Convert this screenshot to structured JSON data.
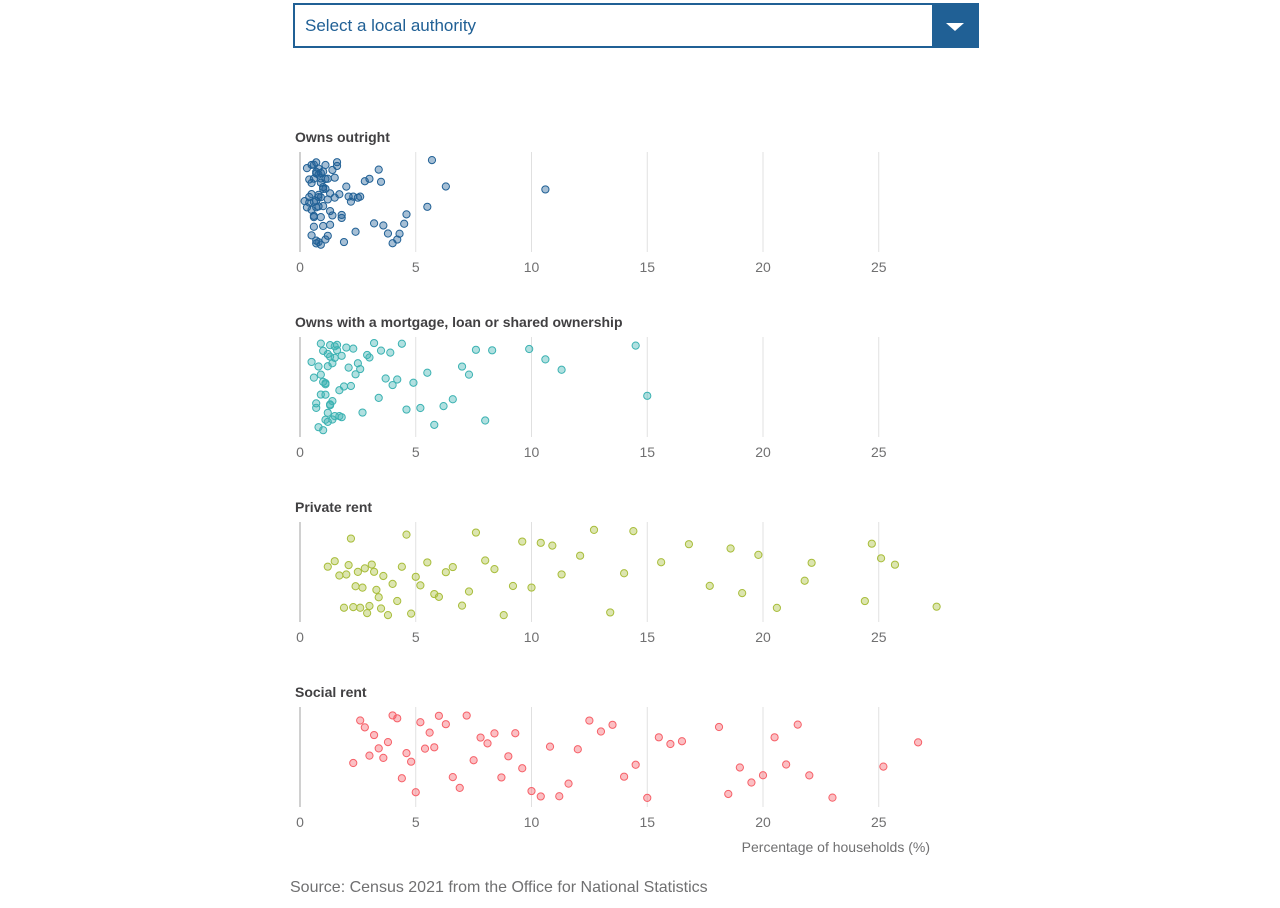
{
  "dropdown": {
    "placeholder": "Select a local authority"
  },
  "source": "Source: Census 2021 from the Office for National Statistics",
  "chart_data": {
    "type": "scatter",
    "xlabel": "Percentage of households (%)",
    "xlim": [
      0,
      28
    ],
    "xticks": [
      0,
      5,
      10,
      15,
      20,
      25
    ],
    "jitter": "vertical (beeswarm-style strip)",
    "panels": [
      {
        "title": "Owns outright",
        "color": "#206095",
        "values": [
          0.2,
          0.3,
          0.3,
          0.4,
          0.4,
          0.4,
          0.5,
          0.5,
          0.5,
          0.5,
          0.5,
          0.6,
          0.6,
          0.6,
          0.6,
          0.6,
          0.6,
          0.7,
          0.7,
          0.7,
          0.7,
          0.7,
          0.7,
          0.7,
          0.8,
          0.8,
          0.8,
          0.8,
          0.8,
          0.8,
          0.9,
          0.9,
          0.9,
          0.9,
          0.9,
          0.9,
          1.0,
          1.0,
          1.0,
          1.0,
          1.0,
          1.1,
          1.1,
          1.1,
          1.1,
          1.2,
          1.2,
          1.2,
          1.3,
          1.3,
          1.3,
          1.4,
          1.4,
          1.5,
          1.5,
          1.6,
          1.6,
          1.7,
          1.8,
          1.8,
          1.9,
          2.0,
          2.1,
          2.2,
          2.3,
          2.4,
          2.5,
          2.6,
          2.8,
          3.0,
          3.2,
          3.4,
          3.5,
          3.6,
          3.8,
          4.0,
          4.2,
          4.3,
          4.5,
          4.6,
          5.5,
          5.7,
          6.3,
          10.6
        ]
      },
      {
        "title": "Owns with a mortgage, loan or shared ownership",
        "color": "#3BB2B2",
        "values": [
          0.5,
          0.6,
          0.7,
          0.7,
          0.8,
          0.8,
          0.9,
          0.9,
          0.9,
          1.0,
          1.0,
          1.0,
          1.1,
          1.1,
          1.1,
          1.1,
          1.2,
          1.2,
          1.2,
          1.2,
          1.3,
          1.3,
          1.3,
          1.3,
          1.4,
          1.4,
          1.4,
          1.5,
          1.5,
          1.5,
          1.6,
          1.6,
          1.7,
          1.7,
          1.8,
          1.8,
          1.9,
          2.0,
          2.1,
          2.2,
          2.3,
          2.4,
          2.5,
          2.6,
          2.7,
          2.9,
          3.0,
          3.2,
          3.4,
          3.5,
          3.7,
          3.9,
          4.0,
          4.2,
          4.4,
          4.6,
          4.9,
          5.2,
          5.5,
          5.8,
          6.2,
          6.6,
          7.0,
          7.3,
          7.6,
          8.0,
          8.3,
          9.9,
          10.6,
          11.3,
          14.5,
          15.0
        ]
      },
      {
        "title": "Private rent",
        "color": "#A8BD3A",
        "values": [
          1.2,
          1.5,
          1.7,
          1.9,
          2.0,
          2.1,
          2.2,
          2.3,
          2.4,
          2.5,
          2.6,
          2.7,
          2.8,
          2.9,
          3.0,
          3.1,
          3.2,
          3.3,
          3.4,
          3.5,
          3.6,
          3.8,
          4.0,
          4.2,
          4.4,
          4.6,
          4.8,
          5.0,
          5.2,
          5.5,
          5.8,
          6.0,
          6.3,
          6.6,
          7.0,
          7.3,
          7.6,
          8.0,
          8.4,
          8.8,
          9.2,
          9.6,
          10.0,
          10.4,
          10.9,
          11.3,
          12.1,
          12.7,
          13.4,
          14.0,
          14.4,
          15.6,
          16.8,
          17.7,
          18.6,
          19.1,
          19.8,
          20.6,
          21.8,
          22.1,
          24.4,
          24.7,
          25.1,
          25.7,
          27.5
        ]
      },
      {
        "title": "Social rent",
        "color": "#F66068",
        "values": [
          2.3,
          2.6,
          2.8,
          3.0,
          3.2,
          3.4,
          3.6,
          3.8,
          4.0,
          4.2,
          4.4,
          4.6,
          4.8,
          5.0,
          5.2,
          5.4,
          5.6,
          5.8,
          6.0,
          6.3,
          6.6,
          6.9,
          7.2,
          7.5,
          7.8,
          8.1,
          8.4,
          8.7,
          9.0,
          9.3,
          9.6,
          10.0,
          10.4,
          10.8,
          11.2,
          11.6,
          12.0,
          12.5,
          13.0,
          13.5,
          14.0,
          14.5,
          15.0,
          15.5,
          16.0,
          16.5,
          18.1,
          18.5,
          19.0,
          19.5,
          20.0,
          20.5,
          21.0,
          21.5,
          22.0,
          23.0,
          25.2,
          26.7
        ]
      }
    ]
  }
}
